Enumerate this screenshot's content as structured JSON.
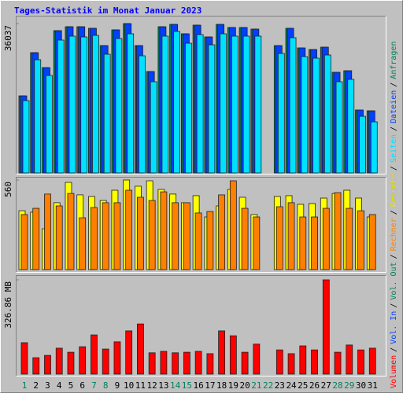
{
  "title": "Tages-Statistik im Monat Januar 2023",
  "legend_separator": "/",
  "chart_data": [
    {
      "type": "bar",
      "ylim": [
        0,
        36037
      ],
      "yticks": [
        36037
      ],
      "series": [
        {
          "name": "Anfragen",
          "color": "#00805c",
          "values": [
            18588,
            29019,
            25416,
            34330,
            35279,
            35279,
            34899,
            30727,
            34520,
            36037,
            30727,
            24467,
            35279,
            35848,
            33572,
            35658,
            32813,
            35848,
            35089,
            35089,
            34710,
            null,
            30727,
            34899,
            30158,
            29778,
            30347,
            24278,
            24657,
            15174,
            14984
          ]
        },
        {
          "name": "Dateien",
          "color": "#0040ff",
          "values": [
            18588,
            29019,
            25416,
            34330,
            35279,
            35279,
            34899,
            30727,
            34520,
            36037,
            30727,
            24467,
            35279,
            35848,
            33572,
            35658,
            32813,
            35848,
            35089,
            35089,
            34710,
            null,
            30727,
            34899,
            30158,
            29778,
            30347,
            24278,
            24657,
            15174,
            14984
          ]
        },
        {
          "name": "Seiten",
          "color": "#00e0ff",
          "values": [
            17450,
            27312,
            23519,
            32054,
            33003,
            32813,
            33192,
            28640,
            32434,
            33572,
            28261,
            22002,
            33003,
            34141,
            31296,
            33382,
            30916,
            33572,
            33003,
            33003,
            33003,
            null,
            28830,
            32623,
            28071,
            27692,
            28451,
            22002,
            22571,
            13656,
            12329
          ]
        }
      ]
    },
    {
      "type": "bar",
      "ylim": [
        0,
        560
      ],
      "yticks": [
        560
      ],
      "series": [
        {
          "name": "Besuche",
          "color": "#ffff00",
          "values": [
            368,
            359,
            255,
            418,
            545,
            467,
            457,
            432,
            496,
            560,
            521,
            555,
            501,
            472,
            418,
            462,
            329,
            398,
            501,
            452,
            344,
            null,
            457,
            462,
            408,
            413,
            447,
            476,
            496,
            447,
            329
          ]
        },
        {
          "name": "Rechner",
          "color": "#ff8000",
          "values": [
            344,
            383,
            472,
            398,
            476,
            324,
            388,
            418,
            418,
            496,
            452,
            432,
            486,
            418,
            418,
            354,
            363,
            467,
            555,
            383,
            329,
            null,
            393,
            418,
            329,
            329,
            383,
            481,
            383,
            368,
            344
          ]
        }
      ]
    },
    {
      "type": "bar",
      "ylim": [
        0,
        326.86
      ],
      "yticks": [
        {
          "value": 326.86,
          "label": "326.86 MB"
        }
      ],
      "categories": [
        "1",
        "2",
        "3",
        "4",
        "5",
        "6",
        "7",
        "8",
        "9",
        "10",
        "11",
        "12",
        "13",
        "14",
        "15",
        "16",
        "17",
        "18",
        "19",
        "20",
        "21",
        "22",
        "23",
        "24",
        "25",
        "26",
        "27",
        "28",
        "29",
        "30",
        "31"
      ],
      "category_colors": [
        "#00805c",
        "#000000",
        "#000000",
        "#000000",
        "#000000",
        "#000000",
        "#00805c",
        "#00805c",
        "#000000",
        "#000000",
        "#000000",
        "#000000",
        "#000000",
        "#00805c",
        "#00805c",
        "#000000",
        "#000000",
        "#000000",
        "#000000",
        "#000000",
        "#00805c",
        "#00805c",
        "#000000",
        "#000000",
        "#000000",
        "#000000",
        "#000000",
        "#00805c",
        "#00805c",
        "#000000",
        "#000000"
      ],
      "series": [
        {
          "name": "Volumen",
          "color": "#ff0000",
          "values": [
            109,
            57,
            65,
            90,
            76,
            95,
            136,
            87,
            112,
            150,
            174,
            74,
            79,
            74,
            76,
            79,
            71,
            150,
            133,
            76,
            104,
            null,
            84,
            71,
            98,
            84,
            326.86,
            76,
            101,
            84,
            90
          ]
        }
      ],
      "legend_only": [
        {
          "name": "Vol. In",
          "color": "#0040ff"
        },
        {
          "name": "Vol. Out",
          "color": "#00805c"
        }
      ]
    }
  ]
}
